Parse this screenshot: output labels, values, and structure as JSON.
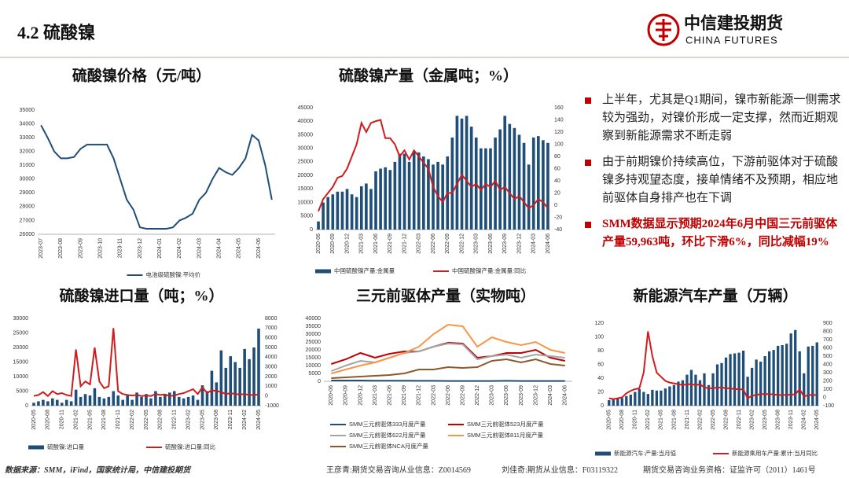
{
  "header": {
    "title": "4.2 硫酸镍",
    "logo_cn": "中信建投期货",
    "logo_en": "CHINA FUTURES"
  },
  "bullets": [
    "上半年，尤其是Q1期间，镍市新能源一侧需求较为强劲，对镍价形成一定支撑，然而近期观察到新能源需求不断走弱",
    "由于前期镍价持续高位，下游前驱体对于硫酸镍多持观望态度，接单情绪不及预期，相应地前驱体自身排产也在下调",
    "SMM数据显示预期2024年6月中国三元前驱体产量59,963吨，环比下滑6%，同比减幅19%"
  ],
  "footer": {
    "source": "数据来源：SMM，iFind，国家统计局，中信建投期货",
    "analyst1": "王彦青:期货交易咨询从业信息：Z0014569",
    "analyst2": "刘佳奇:期货从业信息：F03119322",
    "license": "期货交易咨询业务资格：证监许可（2011）1461号"
  },
  "chart_data": [
    {
      "type": "line",
      "title": "硫酸镍价格（元/吨）",
      "categories": [
        "2023-07",
        null,
        null,
        "2023-08",
        null,
        null,
        "2023-09",
        null,
        null,
        "2023-10",
        null,
        null,
        "2023-11",
        null,
        null,
        "2023-12",
        null,
        null,
        "2024-01",
        null,
        null,
        "2024-02",
        null,
        null,
        "2024-03",
        null,
        null,
        "2024-04",
        null,
        null,
        "2024-05",
        null,
        null,
        "2024-06",
        null,
        null
      ],
      "series": [
        {
          "name": "电池级硫酸镍:平均价",
          "color": "#1f4e79",
          "values": [
            33900,
            33000,
            32000,
            31500,
            31500,
            31600,
            32200,
            32500,
            32500,
            32500,
            32500,
            31500,
            30000,
            28500,
            27800,
            26500,
            26400,
            26400,
            26400,
            26400,
            26500,
            27000,
            27200,
            27500,
            28500,
            29000,
            30000,
            30800,
            30500,
            30300,
            30800,
            31500,
            33200,
            32800,
            31000,
            28500
          ]
        }
      ],
      "ylim": [
        26000,
        35000
      ],
      "yticks": [
        26000,
        27000,
        28000,
        29000,
        30000,
        31000,
        32000,
        33000,
        34000,
        35000
      ]
    },
    {
      "type": "combo",
      "title": "硫酸镍产量（金属吨；%）",
      "categories": [
        "2020-06",
        null,
        null,
        "2020-09",
        null,
        null,
        "2020-12",
        null,
        null,
        "2021-03",
        null,
        null,
        "2021-06",
        null,
        null,
        "2021-09",
        null,
        null,
        "2021-12",
        null,
        null,
        "2022-03",
        null,
        null,
        "2022-06",
        null,
        null,
        "2022-09",
        null,
        null,
        "2022-12",
        null,
        null,
        "2023-03",
        null,
        null,
        "2023-06",
        null,
        null,
        "2023-09",
        null,
        null,
        "2023-12",
        null,
        null,
        "2024-03",
        null,
        null,
        "2024-06"
      ],
      "series": [
        {
          "name": "中国硫酸镍产量:金属量",
          "type": "bar",
          "color": "#1f4e79",
          "values": [
            3000,
            10000,
            12000,
            13000,
            14000,
            14000,
            15000,
            13000,
            12000,
            16000,
            17000,
            15000,
            21500,
            22500,
            23000,
            22000,
            25000,
            28000,
            28000,
            25000,
            29000,
            28500,
            27000,
            26000,
            24000,
            25000,
            24000,
            27000,
            34000,
            42000,
            41000,
            42000,
            38000,
            34000,
            30000,
            30000,
            30000,
            34000,
            37000,
            42000,
            39000,
            37500,
            35000,
            32000,
            24000,
            34000,
            34500,
            33000,
            32000
          ]
        },
        {
          "name": "中国硫酸镍产量:金属量:同比",
          "type": "line",
          "axis": "y2",
          "color": "#d01c1f",
          "values": [
            -10,
            10,
            20,
            30,
            45,
            48,
            60,
            80,
            100,
            135,
            120,
            135,
            138,
            140,
            110,
            110,
            100,
            80,
            90,
            75,
            90,
            80,
            70,
            60,
            30,
            15,
            5,
            20,
            20,
            35,
            50,
            40,
            30,
            35,
            25,
            35,
            30,
            40,
            25,
            30,
            20,
            10,
            15,
            5,
            -5,
            0,
            10,
            5,
            -5
          ]
        }
      ],
      "ylim": [
        0,
        45000
      ],
      "yticks": [
        0,
        5000,
        10000,
        15000,
        20000,
        25000,
        30000,
        35000,
        40000,
        45000
      ],
      "y2lim": [
        -40,
        160
      ],
      "y2ticks": [
        -40,
        -20,
        0,
        20,
        40,
        60,
        80,
        100,
        120,
        140,
        160
      ]
    },
    {
      "type": "combo",
      "title": "硫酸镍进口量（吨；%）",
      "categories": [
        "2020-05",
        null,
        null,
        "2020-08",
        null,
        null,
        "2020-11",
        null,
        null,
        "2021-02",
        null,
        null,
        "2021-05",
        null,
        null,
        "2021-08",
        null,
        null,
        "2021-11",
        null,
        null,
        "2022-02",
        null,
        null,
        "2022-05",
        null,
        null,
        "2022-08",
        null,
        null,
        "2022-11",
        null,
        null,
        "2023-02",
        null,
        null,
        "2023-05",
        null,
        null,
        "2023-08",
        null,
        null,
        "2023-11",
        null,
        null,
        "2024-02",
        null,
        null,
        "2024-05"
      ],
      "series": [
        {
          "name": "硫酸镍:进口量",
          "type": "bar",
          "color": "#1f4e79",
          "values": [
            1000,
            1500,
            2000,
            1500,
            2500,
            2000,
            1000,
            2000,
            1500,
            5500,
            3000,
            4000,
            3500,
            6000,
            3000,
            2500,
            3000,
            5000,
            3500,
            2000,
            3500,
            2000,
            4500,
            3000,
            4000,
            2500,
            5000,
            3000,
            4000,
            4500,
            5000,
            3000,
            2500,
            3000,
            3500,
            2000,
            7000,
            5000,
            12000,
            8000,
            19000,
            13000,
            17000,
            15000,
            13000,
            19500,
            16000,
            20000,
            26500
          ]
        },
        {
          "name": "硫酸镍:进口量:同比",
          "type": "line",
          "axis": "y2",
          "color": "#d01c1f",
          "values": [
            0,
            100,
            400,
            0,
            500,
            200,
            300,
            100,
            0,
            4800,
            1000,
            1500,
            1200,
            5000,
            1500,
            800,
            1000,
            7000,
            500,
            200,
            100,
            50,
            100,
            0,
            50,
            0,
            200,
            100,
            150,
            0,
            50,
            200,
            300,
            500,
            700,
            200,
            900,
            300,
            600,
            500,
            400,
            200,
            300,
            200,
            150,
            200,
            100,
            100,
            150
          ]
        }
      ],
      "ylim": [
        0,
        30000
      ],
      "yticks": [
        0,
        5000,
        10000,
        15000,
        20000,
        25000,
        30000
      ],
      "y2lim": [
        -1000,
        8000
      ],
      "y2ticks": [
        -1000,
        0,
        1000,
        2000,
        3000,
        4000,
        5000,
        6000,
        7000,
        8000
      ]
    },
    {
      "type": "line",
      "title": "三元前驱体产量（实物吨）",
      "categories": [
        "2020-06",
        "2020-09",
        "2020-12",
        "2021-03",
        "2021-06",
        "2021-09",
        "2021-12",
        "2022-03",
        "2022-06",
        "2022-09",
        "2022-12",
        "2023-03",
        "2023-06",
        "2023-09",
        "2023-12",
        "2024-03",
        "2024-06"
      ],
      "series": [
        {
          "name": "SMM三元前驱体333月度产量",
          "color": "#1f4e79",
          "values": [
            500,
            500,
            500,
            400,
            400,
            400,
            300,
            300,
            200,
            200,
            200,
            200,
            300,
            200,
            200,
            200,
            200
          ]
        },
        {
          "name": "SMM三元前驱体523月度产量",
          "color": "#c00000",
          "values": [
            11000,
            14000,
            18000,
            15000,
            17500,
            19000,
            19000,
            22000,
            24500,
            24000,
            15000,
            16000,
            18000,
            18000,
            20000,
            15000,
            13000
          ]
        },
        {
          "name": "SMM三元前驱体622月度产量",
          "color": "#a5a5a5",
          "values": [
            6500,
            10000,
            13000,
            12000,
            15000,
            18000,
            19000,
            22000,
            24000,
            23500,
            14000,
            16000,
            17000,
            15000,
            17000,
            16000,
            15000
          ]
        },
        {
          "name": "SMM三元前驱体811月度产量",
          "color": "#f79646",
          "values": [
            5000,
            7500,
            10000,
            12000,
            15000,
            18000,
            22000,
            30000,
            36000,
            35000,
            22000,
            28000,
            25000,
            23000,
            25000,
            20000,
            18000
          ]
        },
        {
          "name": "SMM三元前驱体NCA月度产量",
          "color": "#8b5a2b",
          "values": [
            2000,
            2500,
            3000,
            3500,
            4000,
            5000,
            7500,
            7500,
            9000,
            8500,
            9000,
            13000,
            14000,
            12000,
            14000,
            11000,
            10000
          ]
        }
      ],
      "ylim": [
        0,
        40000
      ],
      "yticks": [
        0,
        5000,
        10000,
        15000,
        20000,
        25000,
        30000,
        35000,
        40000
      ]
    },
    {
      "type": "combo",
      "title": "新能源汽车产量（万辆）",
      "categories": [
        "2020-05",
        null,
        null,
        "2020-08",
        null,
        null,
        "2020-11",
        null,
        null,
        "2021-02",
        null,
        null,
        "2021-05",
        null,
        null,
        "2021-08",
        null,
        null,
        "2021-11",
        null,
        null,
        "2022-02",
        null,
        null,
        "2022-05",
        null,
        null,
        "2022-08",
        null,
        null,
        "2022-11",
        null,
        null,
        "2023-02",
        null,
        null,
        "2023-05",
        null,
        null,
        "2023-08",
        null,
        null,
        "2023-11",
        null,
        null,
        "2024-02",
        null,
        null,
        "2024-05"
      ],
      "series": [
        {
          "name": "新能源汽车:产量:当月值",
          "type": "bar",
          "color": "#1f4e79",
          "values": [
            8,
            10,
            10,
            11,
            14,
            16,
            20,
            24,
            20,
            17,
            23,
            22,
            22,
            25,
            28,
            30,
            35,
            37,
            45,
            52,
            45,
            37,
            47,
            30,
            47,
            60,
            62,
            70,
            75,
            76,
            77,
            80,
            42,
            55,
            67,
            64,
            72,
            79,
            81,
            87,
            88,
            90,
            105,
            110,
            79,
            47,
            86,
            87,
            92
          ]
        },
        {
          "name": "新能源乘用车产量:累计:当月同比",
          "type": "line",
          "axis": "y2",
          "color": "#d01c1f",
          "values": [
            -10,
            -20,
            -10,
            0,
            50,
            80,
            100,
            110,
            300,
            800,
            500,
            300,
            250,
            200,
            180,
            170,
            160,
            150,
            160,
            160,
            150,
            160,
            120,
            110,
            110,
            120,
            120,
            110,
            110,
            100,
            100,
            95,
            -10,
            20,
            30,
            40,
            40,
            40,
            35,
            30,
            30,
            30,
            35,
            35,
            100,
            10,
            30,
            30,
            30
          ]
        }
      ],
      "ylim": [
        0,
        120
      ],
      "yticks": [
        0,
        20,
        40,
        60,
        80,
        100,
        120
      ],
      "y2lim": [
        -100,
        900
      ],
      "y2ticks": [
        -100,
        0,
        100,
        200,
        300,
        400,
        500,
        600,
        700,
        800,
        900
      ]
    }
  ]
}
